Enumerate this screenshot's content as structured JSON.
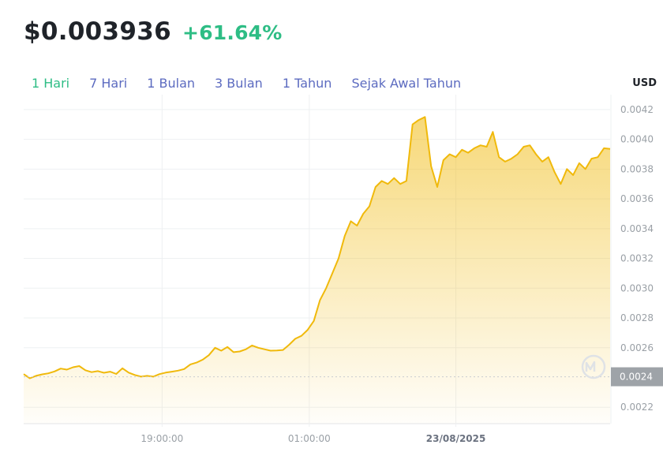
{
  "header": {
    "price": "$0.003936",
    "change": "+61.64%"
  },
  "tabs": [
    {
      "label": "1 Hari",
      "active": true
    },
    {
      "label": "7 Hari",
      "active": false
    },
    {
      "label": "1 Bulan",
      "active": false
    },
    {
      "label": "3 Bulan",
      "active": false
    },
    {
      "label": "1 Tahun",
      "active": false
    },
    {
      "label": "Sejak Awal Tahun",
      "active": false
    }
  ],
  "currency": "USD",
  "colors": {
    "line": "#f0b90b",
    "positive": "#2ebd85",
    "tab": "#5c6bc0",
    "current_label_bg": "#9ea3a8"
  },
  "watermark_icon": "coinmarketcap-logo-icon",
  "chart_data": {
    "type": "area",
    "ylim": [
      0.00209,
      0.0043
    ],
    "y_ticks": [
      "0.0042",
      "0.0040",
      "0.0038",
      "0.0036",
      "0.0034",
      "0.0032",
      "0.0030",
      "0.0028",
      "0.0026",
      "0.0022"
    ],
    "current_label": "0.0024",
    "current_value": 0.002405,
    "x_ticks": [
      {
        "label": "19:00:00",
        "bold": false,
        "t": 0.236
      },
      {
        "label": "01:00:00",
        "bold": false,
        "t": 0.487
      },
      {
        "label": "23/08/2025",
        "bold": true,
        "t": 0.737
      }
    ],
    "series": [
      {
        "values": [
          0.002423,
          0.002395,
          0.002411,
          0.002421,
          0.002428,
          0.002441,
          0.00246,
          0.002453,
          0.002469,
          0.002477,
          0.002449,
          0.002436,
          0.002443,
          0.002432,
          0.002439,
          0.002424,
          0.002462,
          0.002433,
          0.002417,
          0.002406,
          0.002411,
          0.002406,
          0.002423,
          0.002433,
          0.002439,
          0.002446,
          0.002457,
          0.002488,
          0.0025,
          0.00252,
          0.00255,
          0.0026,
          0.00258,
          0.002605,
          0.00257,
          0.002575,
          0.00259,
          0.002615,
          0.0026,
          0.00259,
          0.00258,
          0.002582,
          0.002585,
          0.00262,
          0.00266,
          0.00268,
          0.00272,
          0.00278,
          0.00292,
          0.003,
          0.0031,
          0.0032,
          0.00335,
          0.00345,
          0.00342,
          0.0035,
          0.00355,
          0.00368,
          0.00372,
          0.0037,
          0.00374,
          0.0037,
          0.00372,
          0.0041,
          0.00413,
          0.00415,
          0.00382,
          0.00368,
          0.00386,
          0.0039,
          0.00388,
          0.00393,
          0.00391,
          0.00394,
          0.00396,
          0.00395,
          0.00405,
          0.00388,
          0.00385,
          0.00387,
          0.0039,
          0.00395,
          0.00396,
          0.0039,
          0.00385,
          0.00388,
          0.00378,
          0.0037,
          0.0038,
          0.00376,
          0.00384,
          0.0038,
          0.00387,
          0.00388,
          0.00394,
          0.003936
        ]
      }
    ]
  }
}
